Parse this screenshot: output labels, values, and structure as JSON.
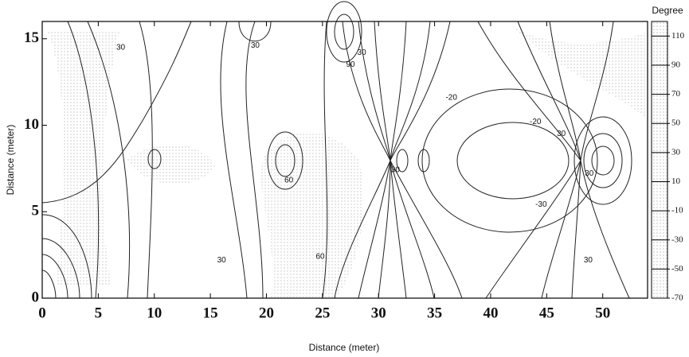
{
  "chart_data": {
    "type": "contour",
    "xlabel": "Distance (meter)",
    "ylabel": "Distance (meter)",
    "xlim": [
      0,
      54
    ],
    "ylim": [
      0,
      16
    ],
    "xticks": [
      0,
      5,
      10,
      15,
      20,
      25,
      30,
      35,
      40,
      45,
      50
    ],
    "yticks": [
      0,
      5,
      10,
      15
    ],
    "colorbar": {
      "title": "Degree",
      "lim": [
        -70,
        120
      ],
      "ticks": [
        110,
        90,
        70,
        50,
        30,
        10,
        -10,
        -30,
        -50,
        -70
      ]
    },
    "contour_labels": [
      {
        "x": 7,
        "y": 14.5,
        "level": 30
      },
      {
        "x": 19,
        "y": 14.6,
        "level": 30
      },
      {
        "x": 28.5,
        "y": 14.2,
        "level": 30
      },
      {
        "x": 27.5,
        "y": 13.5,
        "level": 90
      },
      {
        "x": 36.5,
        "y": 11.6,
        "level": -20
      },
      {
        "x": 44,
        "y": 10.2,
        "level": -20
      },
      {
        "x": 46.3,
        "y": 9.5,
        "level": 30
      },
      {
        "x": 22,
        "y": 6.8,
        "level": 60
      },
      {
        "x": 31.5,
        "y": 7.4,
        "level": 30
      },
      {
        "x": 48.8,
        "y": 7.2,
        "level": 30
      },
      {
        "x": 44.5,
        "y": 5.4,
        "level": -30
      },
      {
        "x": 16,
        "y": 2.2,
        "level": 30
      },
      {
        "x": 24.8,
        "y": 2.4,
        "level": 60
      },
      {
        "x": 48.7,
        "y": 2.2,
        "level": 30
      }
    ]
  }
}
